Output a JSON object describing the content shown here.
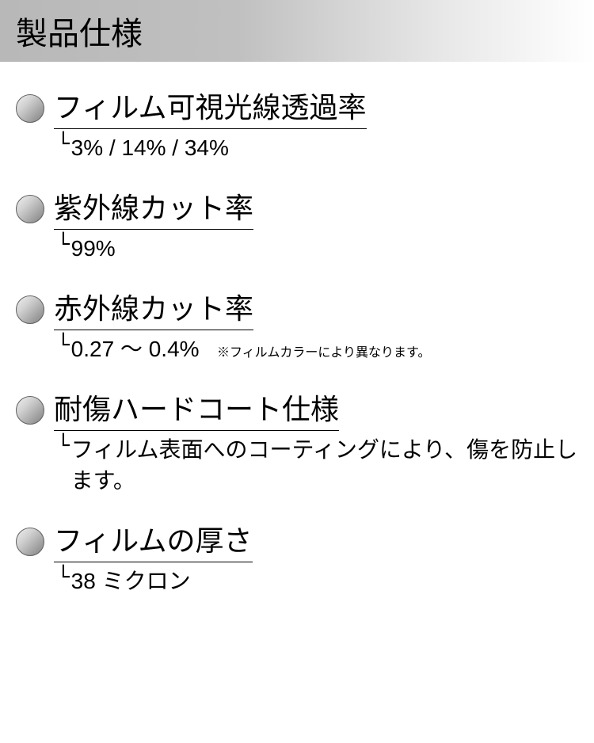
{
  "header": {
    "title": "製品仕様"
  },
  "specs": [
    {
      "title": "フィルム可視光線透過率",
      "value": "3% / 14% / 34%",
      "note": ""
    },
    {
      "title": "紫外線カット率",
      "value": "99%",
      "note": ""
    },
    {
      "title": "赤外線カット率",
      "value": "0.27 〜 0.4%",
      "note": "※フィルムカラーにより異なります。"
    },
    {
      "title": "耐傷ハードコート仕様",
      "value": "フィルム表面へのコーティングにより、傷を防止します。",
      "note": ""
    },
    {
      "title": "フィルムの厚さ",
      "value": "38 ミクロン",
      "note": ""
    }
  ],
  "styling": {
    "header_gradient_start": "#b8b8b8",
    "header_gradient_end": "#ffffff",
    "header_fontsize": 40,
    "title_fontsize": 36,
    "value_fontsize": 28,
    "note_fontsize": 16,
    "bullet_size": 36,
    "bullet_gradient_light": "#f0f0f0",
    "bullet_gradient_dark": "#808080",
    "text_color": "#000000",
    "background_color": "#ffffff"
  }
}
